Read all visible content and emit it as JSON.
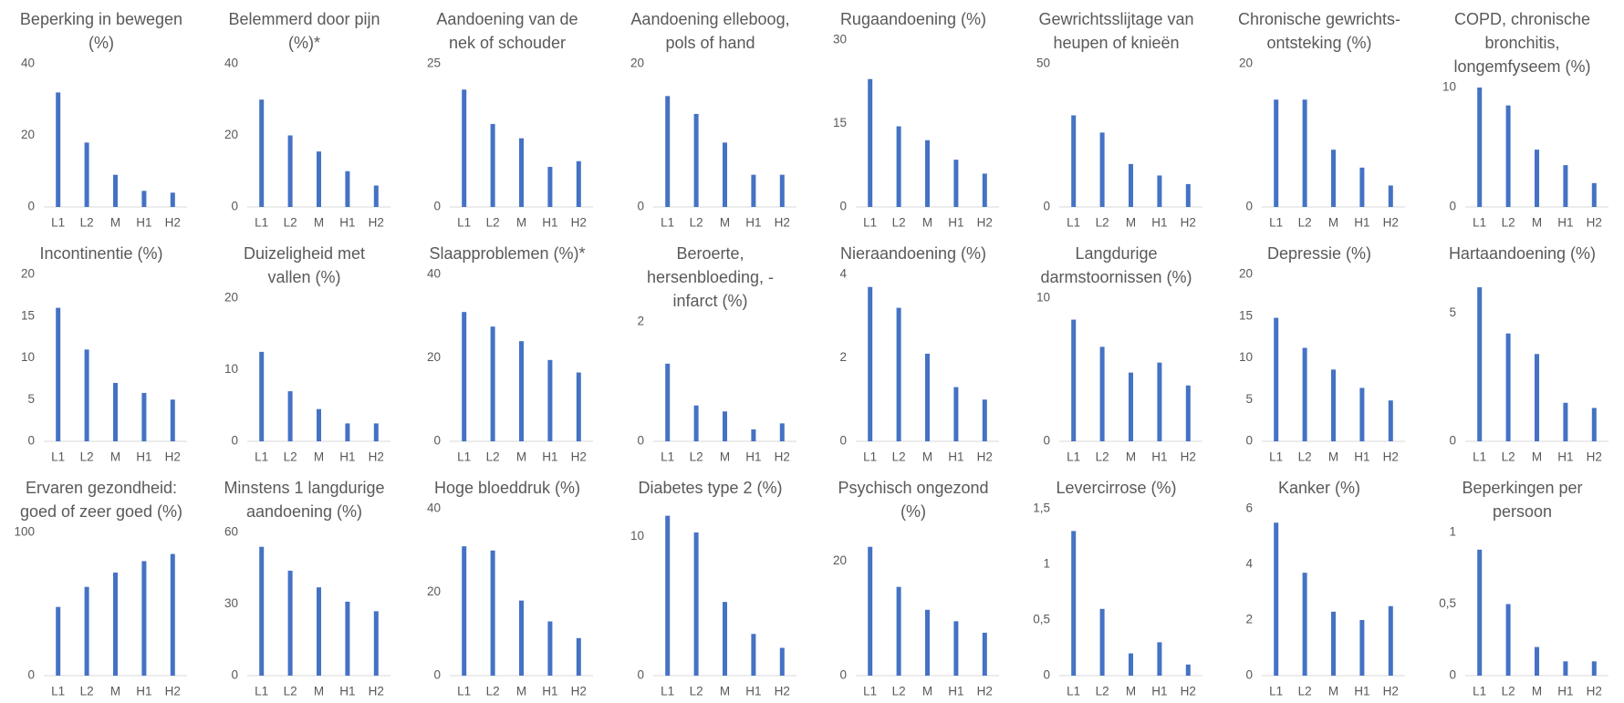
{
  "chart_data": [
    {
      "type": "bar",
      "title": "Beperking in bewegen (%)",
      "categories": [
        "L1",
        "L2",
        "M",
        "H1",
        "H2"
      ],
      "values": [
        32,
        18,
        9,
        4.5,
        4
      ],
      "color": "#4472c4",
      "ylim": [
        0,
        40
      ],
      "yticks": [
        0,
        20,
        40
      ]
    },
    {
      "type": "bar",
      "title": "Belemmerd door pijn (%)*",
      "categories": [
        "L1",
        "L2",
        "M",
        "H1",
        "H2"
      ],
      "values": [
        30,
        20,
        15.5,
        10,
        6
      ],
      "color": "#4472c4",
      "ylim": [
        0,
        40
      ],
      "yticks": [
        0,
        20,
        40
      ]
    },
    {
      "type": "bar",
      "title": "Aandoening van de nek of schouder",
      "categories": [
        "L1",
        "L2",
        "M",
        "H1",
        "H2"
      ],
      "values": [
        20.5,
        14.5,
        12,
        7,
        8
      ],
      "color": "#4472c4",
      "ylim": [
        0,
        25
      ],
      "yticks": [
        0,
        25
      ]
    },
    {
      "type": "bar",
      "title": "Aandoening elleboog, pols of hand",
      "categories": [
        "L1",
        "L2",
        "M",
        "H1",
        "H2"
      ],
      "values": [
        15.5,
        13,
        9,
        4.5,
        4.5
      ],
      "color": "#4472c4",
      "ylim": [
        0,
        20
      ],
      "yticks": [
        0,
        20
      ]
    },
    {
      "type": "bar",
      "title": "Rugaandoening (%)",
      "categories": [
        "L1",
        "L2",
        "M",
        "H1",
        "H2"
      ],
      "values": [
        23,
        14.5,
        12,
        8.5,
        6
      ],
      "color": "#4472c4",
      "ylim": [
        0,
        30
      ],
      "yticks": [
        0,
        15,
        30
      ]
    },
    {
      "type": "bar",
      "title": "Gewrichtsslijtage van heupen of knieën",
      "categories": [
        "L1",
        "L2",
        "M",
        "H1",
        "H2"
      ],
      "values": [
        32,
        26,
        15,
        11,
        8
      ],
      "color": "#4472c4",
      "ylim": [
        0,
        50
      ],
      "yticks": [
        0,
        50
      ]
    },
    {
      "type": "bar",
      "title": "Chronische gewrichts-ontsteking (%)",
      "categories": [
        "L1",
        "L2",
        "M",
        "H1",
        "H2"
      ],
      "values": [
        15,
        15,
        8,
        5.5,
        3
      ],
      "color": "#4472c4",
      "ylim": [
        0,
        20
      ],
      "yticks": [
        0,
        20
      ]
    },
    {
      "type": "bar",
      "title": "COPD, chronische bronchitis, longemfyseem (%)",
      "categories": [
        "L1",
        "L2",
        "M",
        "H1",
        "H2"
      ],
      "values": [
        10,
        8.5,
        4.8,
        3.5,
        2
      ],
      "color": "#4472c4",
      "ylim": [
        0,
        10
      ],
      "yticks": [
        0,
        10
      ]
    },
    {
      "type": "bar",
      "title": "Incontinentie (%)",
      "categories": [
        "L1",
        "L2",
        "M",
        "H1",
        "H2"
      ],
      "values": [
        16,
        11,
        7,
        5.8,
        5
      ],
      "color": "#4472c4",
      "ylim": [
        0,
        20
      ],
      "yticks": [
        0,
        5,
        10,
        15,
        20
      ]
    },
    {
      "type": "bar",
      "title": "Duizeligheid met vallen (%)",
      "categories": [
        "L1",
        "L2",
        "M",
        "H1",
        "H2"
      ],
      "values": [
        12.5,
        7,
        4.5,
        2.5,
        2.5
      ],
      "color": "#4472c4",
      "ylim": [
        0,
        20
      ],
      "yticks": [
        0,
        10,
        20
      ]
    },
    {
      "type": "bar",
      "title": "Slaapproblemen (%)*",
      "categories": [
        "L1",
        "L2",
        "M",
        "H1",
        "H2"
      ],
      "values": [
        31,
        27.5,
        24,
        19.5,
        16.5
      ],
      "color": "#4472c4",
      "ylim": [
        0,
        40
      ],
      "yticks": [
        0,
        20,
        40
      ]
    },
    {
      "type": "bar",
      "title": "Beroerte, hersenbloeding, -infarct (%)",
      "categories": [
        "L1",
        "L2",
        "M",
        "H1",
        "H2"
      ],
      "values": [
        1.3,
        0.6,
        0.5,
        0.2,
        0.3
      ],
      "color": "#4472c4",
      "ylim": [
        0,
        2
      ],
      "yticks": [
        0,
        2
      ]
    },
    {
      "type": "bar",
      "title": "Nieraandoening (%)",
      "categories": [
        "L1",
        "L2",
        "M",
        "H1",
        "H2"
      ],
      "values": [
        3.7,
        3.2,
        2.1,
        1.3,
        1
      ],
      "color": "#4472c4",
      "ylim": [
        0,
        4
      ],
      "yticks": [
        0,
        2,
        4
      ]
    },
    {
      "type": "bar",
      "title": "Langdurige darmstoornissen (%)",
      "categories": [
        "L1",
        "L2",
        "M",
        "H1",
        "H2"
      ],
      "values": [
        8.5,
        6.6,
        4.8,
        5.5,
        3.9
      ],
      "color": "#4472c4",
      "ylim": [
        0,
        10
      ],
      "yticks": [
        0,
        10
      ]
    },
    {
      "type": "bar",
      "title": "Depressie (%)",
      "categories": [
        "L1",
        "L2",
        "M",
        "H1",
        "H2"
      ],
      "values": [
        14.8,
        11.2,
        8.6,
        6.4,
        4.9
      ],
      "color": "#4472c4",
      "ylim": [
        0,
        20
      ],
      "yticks": [
        0,
        5,
        10,
        15,
        20
      ]
    },
    {
      "type": "bar",
      "title": "Hartaandoening (%)",
      "categories": [
        "L1",
        "L2",
        "M",
        "H1",
        "H2"
      ],
      "values": [
        6,
        4.2,
        3.4,
        1.5,
        1.3
      ],
      "color": "#4472c4",
      "ylim": [
        0,
        6.5
      ],
      "yticks": [
        0,
        5
      ]
    },
    {
      "type": "bar",
      "title": "Ervaren gezondheid: goed of zeer goed (%)",
      "categories": [
        "L1",
        "L2",
        "M",
        "H1",
        "H2"
      ],
      "values": [
        48,
        62,
        72,
        80,
        85
      ],
      "color": "#4472c4",
      "ylim": [
        0,
        100
      ],
      "yticks": [
        0,
        100
      ]
    },
    {
      "type": "bar",
      "title": "Minstens 1 langdurige aandoening (%)",
      "categories": [
        "L1",
        "L2",
        "M",
        "H1",
        "H2"
      ],
      "values": [
        54,
        44,
        37,
        31,
        27
      ],
      "color": "#4472c4",
      "ylim": [
        0,
        60
      ],
      "yticks": [
        0,
        30,
        60
      ]
    },
    {
      "type": "bar",
      "title": "Hoge bloeddruk (%)",
      "categories": [
        "L1",
        "L2",
        "M",
        "H1",
        "H2"
      ],
      "values": [
        31,
        30,
        18,
        13,
        9
      ],
      "color": "#4472c4",
      "ylim": [
        0,
        40
      ],
      "yticks": [
        0,
        20,
        40
      ]
    },
    {
      "type": "bar",
      "title": "Diabetes type 2 (%)",
      "categories": [
        "L1",
        "L2",
        "M",
        "H1",
        "H2"
      ],
      "values": [
        11.5,
        10.3,
        5.3,
        3,
        2
      ],
      "color": "#4472c4",
      "ylim": [
        0,
        12
      ],
      "yticks": [
        0,
        10
      ]
    },
    {
      "type": "bar",
      "title": "Psychisch ongezond (%)",
      "categories": [
        "L1",
        "L2",
        "M",
        "H1",
        "H2"
      ],
      "values": [
        22.5,
        15.5,
        11.5,
        9.5,
        7.5
      ],
      "color": "#4472c4",
      "ylim": [
        0,
        25
      ],
      "yticks": [
        0,
        20
      ]
    },
    {
      "type": "bar",
      "title": "Levercirrose (%)",
      "categories": [
        "L1",
        "L2",
        "M",
        "H1",
        "H2"
      ],
      "values": [
        1.3,
        0.6,
        0.2,
        0.3,
        0.1
      ],
      "color": "#4472c4",
      "ylim": [
        0,
        1.5
      ],
      "yticks": [
        0,
        {
          "value": 0.5,
          "label": "0,5"
        },
        1,
        {
          "value": 1.5,
          "label": "1,5"
        }
      ]
    },
    {
      "type": "bar",
      "title": "Kanker (%)",
      "categories": [
        "L1",
        "L2",
        "M",
        "H1",
        "H2"
      ],
      "values": [
        5.5,
        3.7,
        2.3,
        2,
        2.5
      ],
      "color": "#4472c4",
      "ylim": [
        0,
        6
      ],
      "yticks": [
        0,
        2,
        4,
        6
      ]
    },
    {
      "type": "bar",
      "title": "Beperkingen per persoon",
      "categories": [
        "L1",
        "L2",
        "M",
        "H1",
        "H2"
      ],
      "values": [
        0.88,
        0.5,
        0.2,
        0.1,
        0.1
      ],
      "color": "#4472c4",
      "ylim": [
        0,
        1
      ],
      "yticks": [
        0,
        {
          "value": 0.5,
          "label": "0,5"
        },
        1
      ]
    }
  ]
}
